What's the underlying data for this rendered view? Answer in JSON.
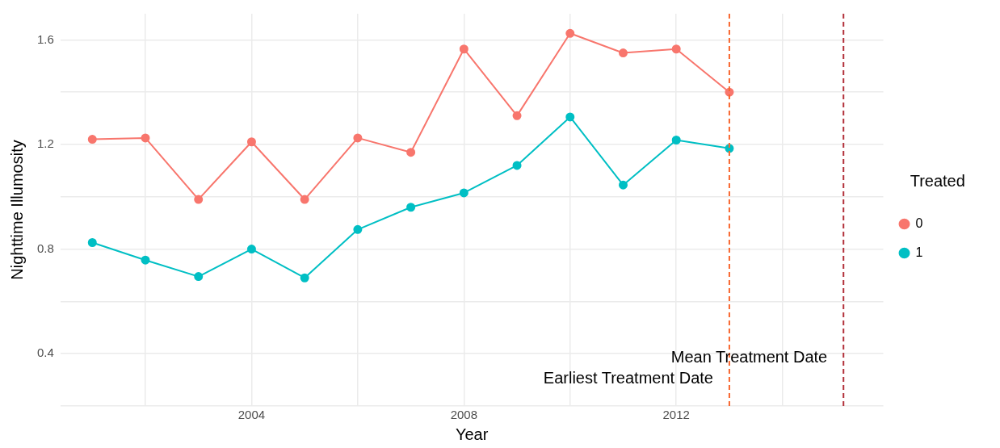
{
  "chart_data": {
    "type": "line",
    "xlabel": "Year",
    "ylabel": "Nighttime Illumosity",
    "legend_title": "Treated",
    "legend": "right",
    "grid": true,
    "marker": "circle",
    "x": [
      2001,
      2002,
      2003,
      2004,
      2005,
      2006,
      2007,
      2008,
      2009,
      2010,
      2011,
      2012,
      2013
    ],
    "series": [
      {
        "name": "0",
        "color": "#f8766d",
        "values": [
          1.22,
          1.225,
          0.99,
          1.21,
          0.99,
          1.225,
          1.17,
          1.565,
          1.31,
          1.625,
          1.55,
          1.565,
          1.4
        ]
      },
      {
        "name": "1",
        "color": "#00bfc4",
        "values": [
          0.825,
          0.758,
          0.695,
          0.8,
          0.69,
          0.875,
          0.96,
          1.015,
          1.12,
          1.305,
          1.045,
          1.217,
          1.185
        ]
      }
    ],
    "xlim": [
      2000.4,
      2015.9
    ],
    "xticks": [
      {
        "value": 2002,
        "label": null
      },
      2004,
      {
        "value": 2006,
        "label": null
      },
      2008,
      {
        "value": 2010,
        "label": null
      },
      2012,
      {
        "value": 2014,
        "label": null
      }
    ],
    "ylim": [
      0.2,
      1.7
    ],
    "yticks": [
      {
        "value": 0.2,
        "label": null
      },
      0.4,
      {
        "value": 0.6,
        "label": null
      },
      0.8,
      {
        "value": 1.0,
        "label": null
      },
      1.2,
      {
        "value": 1.4,
        "label": null
      },
      1.6
    ],
    "ref_lines": [
      {
        "axis": "x",
        "value": 2013,
        "label": "Earliest Treatment Date",
        "color": "#f8662f",
        "line_style": "dashed"
      },
      {
        "axis": "x",
        "value": 2015.15,
        "label": "Mean Treatment Date",
        "color": "#b2303a",
        "line_style": "dashed"
      }
    ]
  }
}
